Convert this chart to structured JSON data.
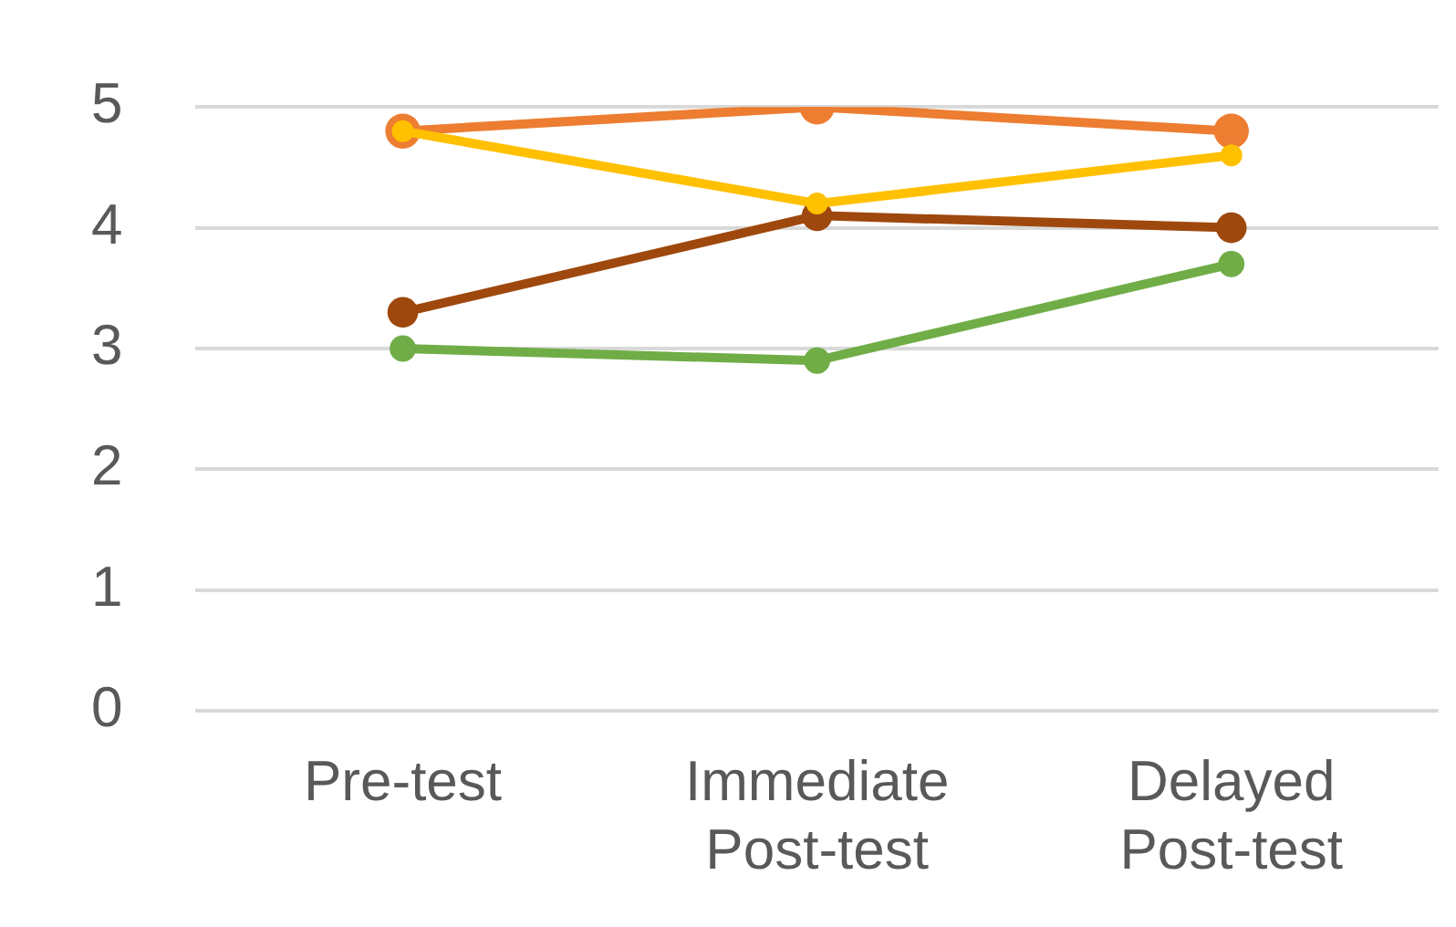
{
  "chart_data": {
    "type": "line",
    "categories": [
      "Pre-test",
      "Immediate Post-test",
      "Delayed Post-test"
    ],
    "series": [
      {
        "color": "#ed7d31",
        "values": [
          4.8,
          5.0,
          4.8
        ]
      },
      {
        "color": "#9e480e",
        "values": [
          3.3,
          4.1,
          4.0
        ]
      },
      {
        "color": "#70ad47",
        "values": [
          3.0,
          2.9,
          3.7
        ]
      },
      {
        "color": "#ffc000",
        "values": [
          4.8,
          4.2,
          4.6
        ]
      }
    ],
    "ylim": [
      0,
      5
    ],
    "yticks": [
      0,
      1,
      2,
      3,
      4,
      5
    ],
    "grid": "y",
    "legend": false,
    "marker": "circle",
    "line_style": "solid"
  }
}
